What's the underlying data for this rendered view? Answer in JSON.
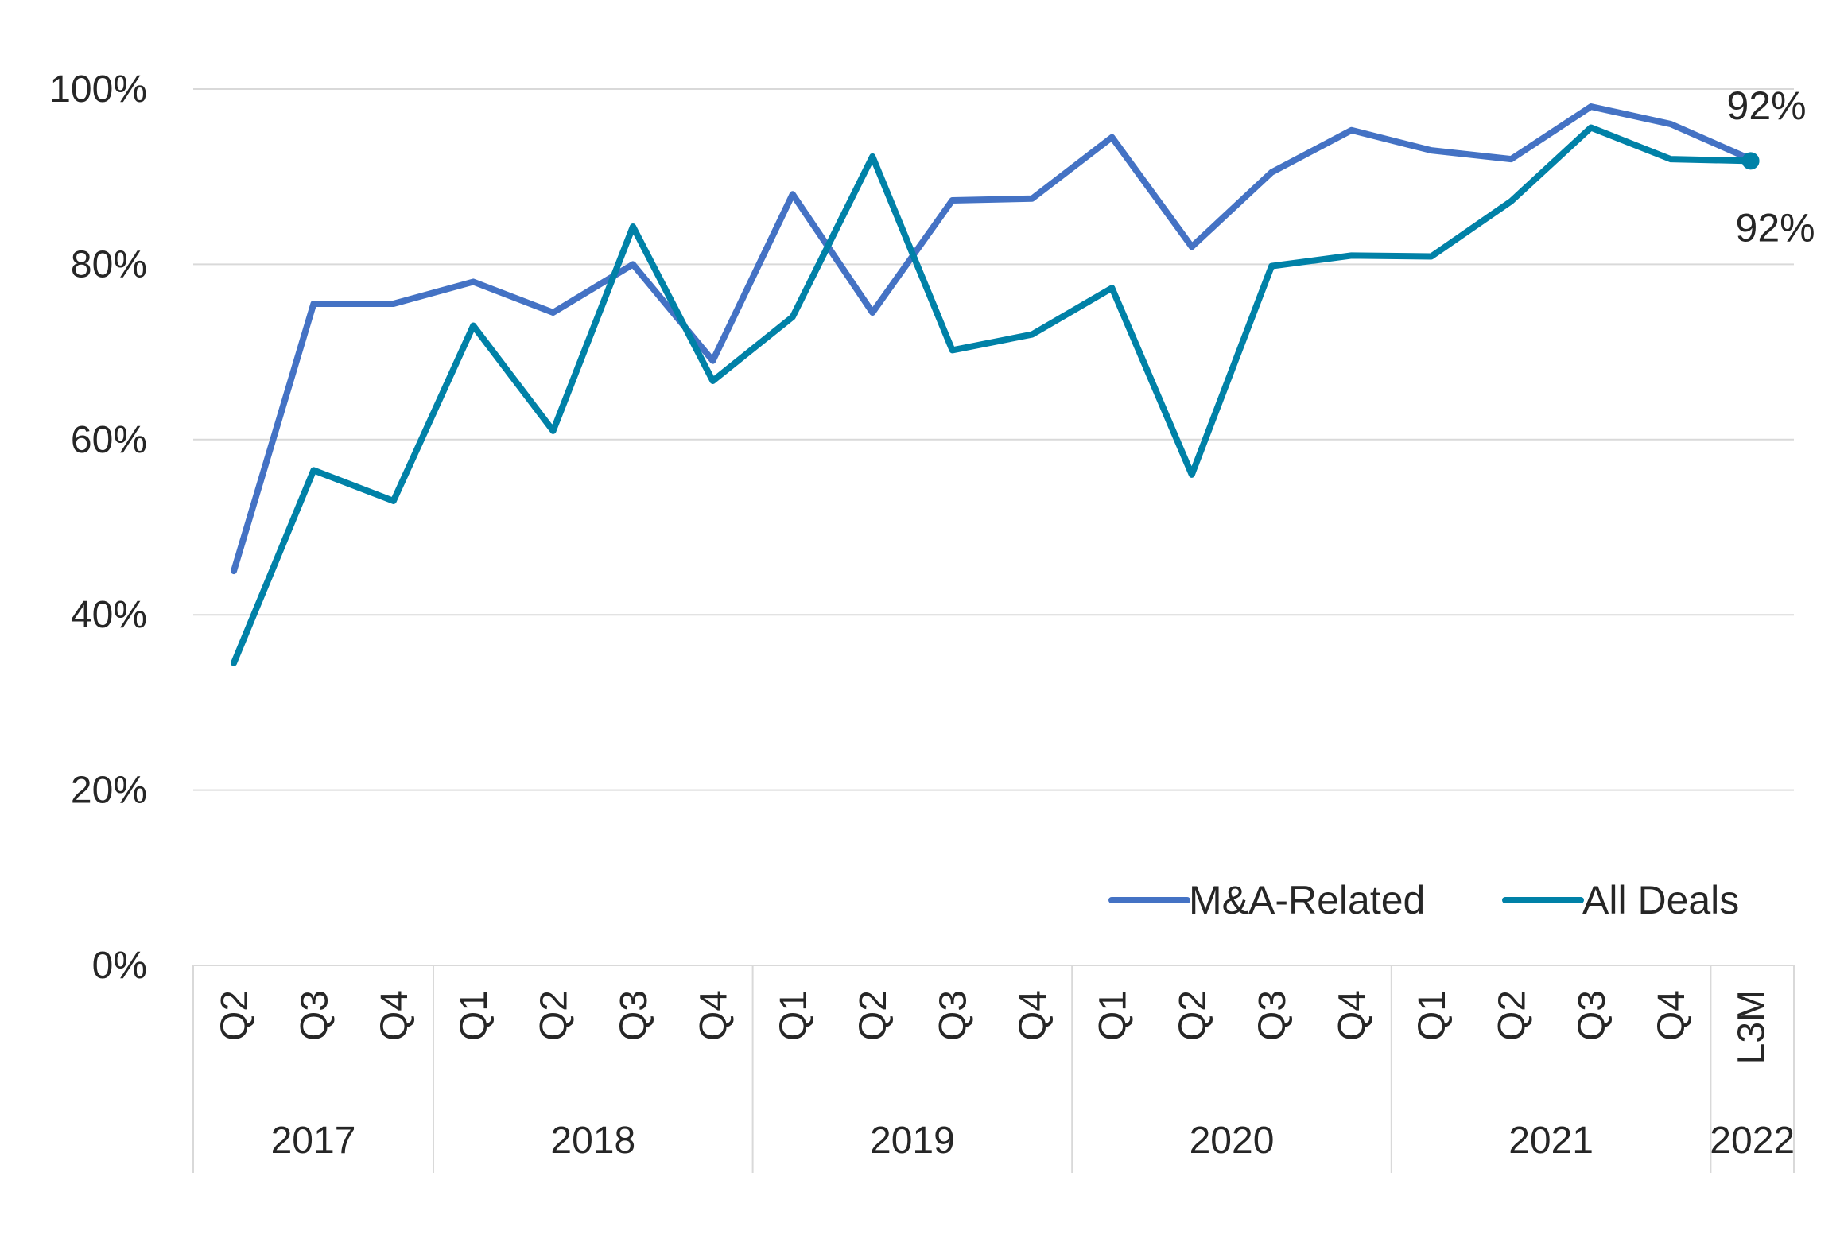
{
  "chart_data": {
    "type": "line",
    "title": "",
    "xlabel": "",
    "ylabel": "",
    "ylim": [
      0,
      100
    ],
    "y_ticks": [
      "0%",
      "20%",
      "40%",
      "60%",
      "80%",
      "100%"
    ],
    "y_tick_values": [
      0,
      20,
      40,
      60,
      80,
      100
    ],
    "grid": true,
    "legend_position": "bottom-right",
    "categories": [
      "Q2",
      "Q3",
      "Q4",
      "Q1",
      "Q2",
      "Q3",
      "Q4",
      "Q1",
      "Q2",
      "Q3",
      "Q4",
      "Q1",
      "Q2",
      "Q3",
      "Q4",
      "Q1",
      "Q2",
      "Q3",
      "Q4",
      "L3M"
    ],
    "year_groups": [
      {
        "label": "2017",
        "count": 3
      },
      {
        "label": "2018",
        "count": 4
      },
      {
        "label": "2019",
        "count": 4
      },
      {
        "label": "2020",
        "count": 4
      },
      {
        "label": "2021",
        "count": 4
      },
      {
        "label": "2022",
        "count": 1
      }
    ],
    "series": [
      {
        "name": "M&A-Related",
        "color": "#4472c4",
        "values": [
          45,
          75.5,
          75.5,
          78,
          74.5,
          80,
          69,
          88,
          74.5,
          87.3,
          87.5,
          94.5,
          82,
          90.5,
          95.3,
          93,
          92,
          98,
          96,
          92
        ],
        "end_label": "92%"
      },
      {
        "name": "All Deals",
        "color": "#0081a7",
        "values": [
          34.5,
          56.5,
          53,
          73,
          61,
          84.3,
          66.7,
          74,
          92.3,
          70.2,
          72,
          77.3,
          56,
          79.8,
          81,
          80.9,
          87.2,
          95.6,
          92,
          91.8
        ],
        "end_label": "92%"
      }
    ]
  }
}
